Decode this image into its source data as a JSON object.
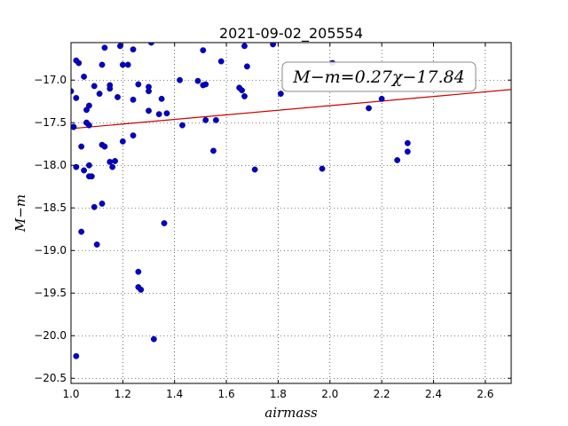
{
  "chart_data": {
    "type": "scatter",
    "title": "2021-09-02_205554",
    "xlabel": "airmass",
    "ylabel": "M−m",
    "xlim": [
      1.0,
      2.7
    ],
    "ylim": [
      -20.56,
      -16.56
    ],
    "x_ticks": [
      1.0,
      1.2,
      1.4,
      1.6,
      1.8,
      2.0,
      2.2,
      2.4,
      2.6
    ],
    "x_tick_labels": [
      "1.0",
      "1.2",
      "1.4",
      "1.6",
      "1.8",
      "2.0",
      "2.2",
      "2.4",
      "2.6"
    ],
    "y_ticks": [
      -17.0,
      -17.5,
      -18.0,
      -18.5,
      -19.0,
      -19.5,
      -20.0,
      -20.5
    ],
    "y_tick_labels": [
      "−17.0",
      "−17.5",
      "−18.0",
      "−18.5",
      "−19.0",
      "−19.5",
      "−20.0",
      "−20.5"
    ],
    "grid": true,
    "colors": {
      "points": "#0000cc",
      "fit_line": "#cc0000"
    },
    "fit": {
      "slope": 0.27,
      "intercept": -17.84,
      "label": "M−m=0.27χ−17.84"
    },
    "points": {
      "x": [
        1.0,
        1.01,
        1.02,
        1.03,
        1.02,
        1.05,
        1.06,
        1.07,
        1.09,
        1.11,
        1.13,
        1.12,
        1.15,
        1.15,
        1.18,
        1.2,
        1.22,
        1.19,
        1.24,
        1.24,
        1.26,
        1.3,
        1.3,
        1.35,
        1.42,
        1.49,
        1.51,
        1.52,
        1.51,
        1.58,
        1.65,
        1.67,
        1.68,
        1.67,
        1.78,
        1.81,
        2.01,
        2.15,
        2.2,
        1.01,
        1.02,
        1.06,
        1.07,
        1.06,
        1.05,
        1.07,
        1.08,
        1.12,
        1.13,
        1.15,
        1.17,
        1.16,
        1.2,
        1.24,
        1.3,
        1.34,
        1.37,
        1.43,
        1.52,
        1.56,
        1.55,
        1.66,
        1.71,
        1.97,
        2.26,
        2.3,
        2.3,
        1.04,
        1.07,
        1.09,
        1.12,
        1.36,
        1.04,
        1.1,
        1.26,
        1.26,
        1.27,
        1.32,
        1.02,
        1.31
      ],
      "y": [
        -17.13,
        -17.55,
        -17.21,
        -16.8,
        -16.77,
        -16.96,
        -17.35,
        -17.3,
        -17.07,
        -17.16,
        -16.62,
        -16.82,
        -17.06,
        -17.1,
        -17.2,
        -16.82,
        -16.82,
        -16.6,
        -17.23,
        -16.64,
        -17.05,
        -17.08,
        -17.13,
        -17.22,
        -17.0,
        -17.01,
        -17.06,
        -17.05,
        -16.65,
        -16.78,
        -17.09,
        -16.6,
        -16.84,
        -17.19,
        -16.58,
        -17.16,
        -16.8,
        -17.33,
        -17.22,
        -17.55,
        -18.02,
        -17.5,
        -17.53,
        -17.5,
        -18.06,
        -18.0,
        -18.13,
        -17.76,
        -17.78,
        -17.96,
        -17.95,
        -18.02,
        -17.72,
        -17.65,
        -17.36,
        -17.4,
        -17.39,
        -17.53,
        -17.47,
        -17.47,
        -17.83,
        -17.12,
        -18.05,
        -18.04,
        -17.94,
        -17.84,
        -17.74,
        -17.78,
        -18.13,
        -18.49,
        -18.45,
        -18.68,
        -18.78,
        -18.93,
        -19.25,
        -19.43,
        -19.46,
        -20.04,
        -20.24,
        -16.56
      ]
    }
  }
}
